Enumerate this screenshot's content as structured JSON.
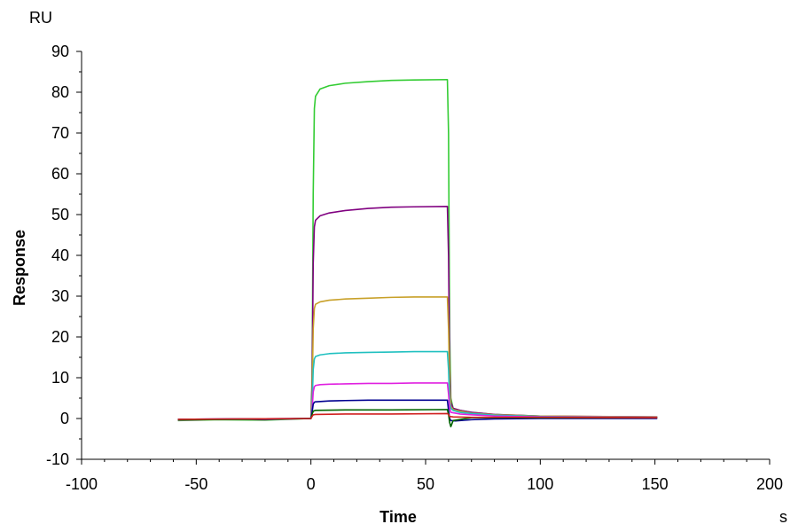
{
  "chart_data": {
    "type": "line",
    "title": "",
    "xlabel": "Time",
    "ylabel": "Response",
    "x_unit": "s",
    "y_unit": "RU",
    "xlim": [
      -100,
      200
    ],
    "ylim": [
      -10,
      90
    ],
    "x_ticks": [
      -100,
      -50,
      0,
      50,
      100,
      150,
      200
    ],
    "y_ticks": [
      -10,
      0,
      10,
      20,
      30,
      40,
      50,
      60,
      70,
      80,
      90
    ],
    "grid": false,
    "legend": "none",
    "series": [
      {
        "color": "#33cc33",
        "points": [
          [
            -58,
            -0.5
          ],
          [
            -40,
            -0.3
          ],
          [
            -20,
            -0.4
          ],
          [
            -5,
            -0.1
          ],
          [
            -1,
            0
          ],
          [
            0,
            0
          ],
          [
            0.5,
            10
          ],
          [
            1,
            55
          ],
          [
            1.5,
            76
          ],
          [
            2,
            79
          ],
          [
            4,
            80.8
          ],
          [
            8,
            81.6
          ],
          [
            15,
            82.2
          ],
          [
            25,
            82.6
          ],
          [
            35,
            82.9
          ],
          [
            45,
            83
          ],
          [
            59.5,
            83.1
          ],
          [
            60,
            70
          ],
          [
            60.5,
            20
          ],
          [
            61,
            5
          ],
          [
            62,
            2.5
          ],
          [
            65,
            2
          ],
          [
            70,
            1.5
          ],
          [
            80,
            1
          ],
          [
            90,
            0.8
          ],
          [
            100,
            0.6
          ],
          [
            120,
            0.4
          ],
          [
            151,
            0.2
          ]
        ]
      },
      {
        "color": "#800080",
        "points": [
          [
            -58,
            -0.4
          ],
          [
            -40,
            -0.2
          ],
          [
            -20,
            -0.3
          ],
          [
            -1,
            0
          ],
          [
            0,
            0
          ],
          [
            0.5,
            8
          ],
          [
            1,
            38
          ],
          [
            1.5,
            47
          ],
          [
            2,
            48.6
          ],
          [
            4,
            49.7
          ],
          [
            8,
            50.4
          ],
          [
            15,
            51
          ],
          [
            25,
            51.5
          ],
          [
            35,
            51.8
          ],
          [
            45,
            51.9
          ],
          [
            59.5,
            52
          ],
          [
            60,
            40
          ],
          [
            60.5,
            12
          ],
          [
            61,
            4
          ],
          [
            62,
            2.5
          ],
          [
            65,
            2
          ],
          [
            70,
            1.5
          ],
          [
            80,
            1
          ],
          [
            100,
            0.6
          ],
          [
            120,
            0.5
          ],
          [
            151,
            0.4
          ]
        ]
      },
      {
        "color": "#c8a028",
        "points": [
          [
            -58,
            -0.3
          ],
          [
            -30,
            -0.2
          ],
          [
            -1,
            0
          ],
          [
            0,
            0
          ],
          [
            0.5,
            5
          ],
          [
            1,
            22
          ],
          [
            1.5,
            27
          ],
          [
            2,
            28
          ],
          [
            4,
            28.6
          ],
          [
            8,
            29
          ],
          [
            15,
            29.3
          ],
          [
            25,
            29.5
          ],
          [
            35,
            29.7
          ],
          [
            45,
            29.8
          ],
          [
            59.5,
            29.8
          ],
          [
            60,
            22
          ],
          [
            60.5,
            8
          ],
          [
            61,
            3
          ],
          [
            62,
            2.2
          ],
          [
            65,
            1.8
          ],
          [
            70,
            1.3
          ],
          [
            80,
            0.9
          ],
          [
            100,
            0.6
          ],
          [
            151,
            0.4
          ]
        ]
      },
      {
        "color": "#20c0c0",
        "points": [
          [
            -58,
            -0.3
          ],
          [
            -30,
            -0.2
          ],
          [
            -1,
            0
          ],
          [
            0,
            0
          ],
          [
            0.5,
            3
          ],
          [
            1,
            12
          ],
          [
            1.5,
            14.6
          ],
          [
            2,
            15.2
          ],
          [
            4,
            15.6
          ],
          [
            8,
            15.9
          ],
          [
            15,
            16.1
          ],
          [
            25,
            16.2
          ],
          [
            35,
            16.3
          ],
          [
            45,
            16.4
          ],
          [
            59.5,
            16.4
          ],
          [
            60,
            12
          ],
          [
            60.5,
            4
          ],
          [
            61,
            2.5
          ],
          [
            62,
            2
          ],
          [
            65,
            1.5
          ],
          [
            70,
            1.2
          ],
          [
            80,
            0.8
          ],
          [
            100,
            0.5
          ],
          [
            151,
            0.3
          ]
        ]
      },
      {
        "color": "#e020e0",
        "points": [
          [
            -58,
            -0.2
          ],
          [
            -30,
            -0.1
          ],
          [
            -1,
            0
          ],
          [
            0,
            0
          ],
          [
            0.5,
            2
          ],
          [
            1,
            6.5
          ],
          [
            1.5,
            7.8
          ],
          [
            2,
            8.1
          ],
          [
            4,
            8.3
          ],
          [
            8,
            8.4
          ],
          [
            15,
            8.5
          ],
          [
            25,
            8.6
          ],
          [
            35,
            8.6
          ],
          [
            45,
            8.7
          ],
          [
            59.5,
            8.7
          ],
          [
            60,
            6
          ],
          [
            60.5,
            2.5
          ],
          [
            61,
            1.5
          ],
          [
            65,
            1.1
          ],
          [
            70,
            0.9
          ],
          [
            80,
            0.6
          ],
          [
            100,
            0.4
          ],
          [
            151,
            0.3
          ]
        ]
      },
      {
        "color": "#000090",
        "points": [
          [
            -58,
            -0.2
          ],
          [
            -30,
            -0.1
          ],
          [
            -1,
            0
          ],
          [
            0,
            0
          ],
          [
            0.5,
            1.5
          ],
          [
            1,
            3.5
          ],
          [
            1.5,
            4
          ],
          [
            2,
            4.1
          ],
          [
            8,
            4.3
          ],
          [
            15,
            4.4
          ],
          [
            25,
            4.5
          ],
          [
            35,
            4.5
          ],
          [
            45,
            4.5
          ],
          [
            59.5,
            4.5
          ],
          [
            60,
            2
          ],
          [
            60.5,
            0
          ],
          [
            61,
            -0.5
          ],
          [
            63,
            -0.6
          ],
          [
            70,
            -0.3
          ],
          [
            80,
            -0.1
          ],
          [
            100,
            0
          ],
          [
            151,
            0
          ]
        ]
      },
      {
        "color": "#006400",
        "points": [
          [
            -58,
            -0.3
          ],
          [
            -30,
            -0.2
          ],
          [
            -1,
            0
          ],
          [
            0,
            0
          ],
          [
            0.5,
            1
          ],
          [
            1,
            1.8
          ],
          [
            2,
            2
          ],
          [
            15,
            2.1
          ],
          [
            35,
            2.1
          ],
          [
            59.5,
            2.2
          ],
          [
            60,
            1
          ],
          [
            60.5,
            -1
          ],
          [
            61,
            -2
          ],
          [
            62,
            -0.5
          ],
          [
            70,
            0.2
          ],
          [
            100,
            0.2
          ],
          [
            151,
            0.2
          ]
        ]
      },
      {
        "color": "#d02020",
        "points": [
          [
            -58,
            -0.2
          ],
          [
            -30,
            -0.1
          ],
          [
            -1,
            0
          ],
          [
            0,
            0
          ],
          [
            0.5,
            0.5
          ],
          [
            1,
            0.9
          ],
          [
            2,
            1
          ],
          [
            15,
            1.1
          ],
          [
            35,
            1.1
          ],
          [
            59.5,
            1.2
          ],
          [
            60,
            1
          ],
          [
            60.5,
            0.5
          ],
          [
            62,
            0.4
          ],
          [
            70,
            0.3
          ],
          [
            100,
            0.3
          ],
          [
            151,
            0.2
          ]
        ]
      }
    ]
  }
}
